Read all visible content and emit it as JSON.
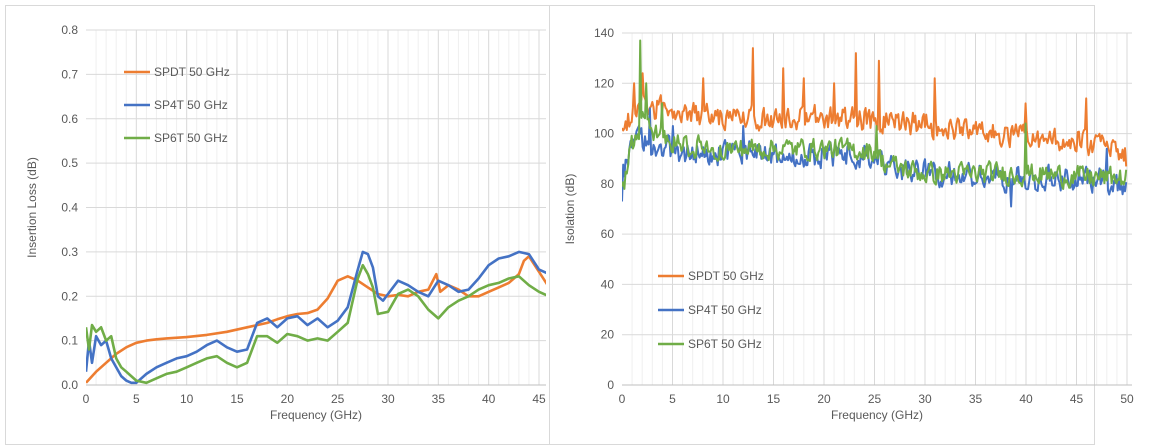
{
  "chart_data": [
    {
      "type": "line",
      "xlabel": "Frequency (GHz)",
      "ylabel": "Insertion Loss (dB)",
      "xlim": [
        0,
        45
      ],
      "ylim": [
        0,
        0.8
      ],
      "x_ticks": [
        "0",
        "5",
        "10",
        "15",
        "20",
        "25",
        "30",
        "35",
        "40",
        "45"
      ],
      "y_ticks": [
        "0.0",
        "0.1",
        "0.2",
        "0.3",
        "0.4",
        "0.5",
        "0.6",
        "0.7",
        "0.8"
      ],
      "grid": true,
      "legend_position": "top-left",
      "series": [
        {
          "name": "SPDT 50 GHz",
          "color": "#ED7D31",
          "x": [
            0,
            1,
            2,
            3,
            4,
            5,
            6,
            7,
            8,
            10,
            12,
            14,
            16,
            18,
            19,
            20,
            21,
            22,
            23,
            24,
            25,
            26,
            27,
            28,
            29,
            30,
            31,
            32,
            33,
            34,
            34.8,
            35.2,
            36,
            37,
            38,
            39,
            40,
            41,
            42,
            43,
            43.5,
            44,
            45,
            46
          ],
          "y": [
            0.005,
            0.03,
            0.05,
            0.07,
            0.085,
            0.095,
            0.1,
            0.103,
            0.105,
            0.108,
            0.113,
            0.12,
            0.13,
            0.14,
            0.148,
            0.155,
            0.16,
            0.162,
            0.17,
            0.195,
            0.235,
            0.245,
            0.235,
            0.22,
            0.205,
            0.2,
            0.203,
            0.2,
            0.21,
            0.215,
            0.25,
            0.21,
            0.225,
            0.215,
            0.2,
            0.2,
            0.21,
            0.22,
            0.23,
            0.25,
            0.28,
            0.29,
            0.255,
            0.22
          ]
        },
        {
          "name": "SP4T 50 GHz",
          "color": "#4472C4",
          "x": [
            0,
            0.3,
            0.6,
            1,
            1.5,
            2,
            2.5,
            3,
            3.5,
            4,
            4.5,
            5,
            6,
            7,
            8,
            9,
            10,
            11,
            12,
            13,
            14,
            15,
            16,
            17,
            18,
            19,
            20,
            21,
            22,
            23,
            24,
            25,
            26,
            27,
            27.5,
            28,
            28.5,
            29,
            29.5,
            30,
            31,
            32,
            33,
            34,
            35,
            36,
            37,
            38,
            39,
            40,
            41,
            42,
            43,
            44,
            45,
            46
          ],
          "y": [
            0.03,
            0.1,
            0.05,
            0.11,
            0.09,
            0.1,
            0.06,
            0.04,
            0.02,
            0.01,
            0.005,
            0.005,
            0.025,
            0.04,
            0.05,
            0.06,
            0.065,
            0.075,
            0.09,
            0.1,
            0.085,
            0.075,
            0.08,
            0.14,
            0.15,
            0.13,
            0.15,
            0.155,
            0.135,
            0.15,
            0.13,
            0.145,
            0.175,
            0.26,
            0.3,
            0.295,
            0.265,
            0.2,
            0.19,
            0.205,
            0.235,
            0.225,
            0.21,
            0.2,
            0.235,
            0.225,
            0.21,
            0.215,
            0.24,
            0.27,
            0.285,
            0.29,
            0.3,
            0.295,
            0.26,
            0.25
          ]
        },
        {
          "name": "SP6T 50 GHz",
          "color": "#70AD47",
          "x": [
            0,
            0.3,
            0.6,
            1,
            1.5,
            2,
            2.5,
            3,
            3.5,
            4,
            5,
            6,
            7,
            8,
            9,
            10,
            11,
            12,
            13,
            14,
            15,
            16,
            17,
            18,
            19,
            20,
            21,
            22,
            23,
            24,
            25,
            26,
            27,
            27.5,
            28,
            28.5,
            29,
            30,
            31,
            32,
            33,
            34,
            35,
            36,
            37,
            38,
            39,
            40,
            41,
            42,
            43,
            44,
            45,
            46
          ],
          "y": [
            0.13,
            0.08,
            0.135,
            0.12,
            0.13,
            0.1,
            0.11,
            0.06,
            0.04,
            0.03,
            0.01,
            0.005,
            0.015,
            0.025,
            0.03,
            0.04,
            0.05,
            0.06,
            0.065,
            0.05,
            0.04,
            0.05,
            0.11,
            0.11,
            0.095,
            0.115,
            0.11,
            0.1,
            0.105,
            0.1,
            0.12,
            0.14,
            0.24,
            0.27,
            0.25,
            0.22,
            0.16,
            0.165,
            0.205,
            0.215,
            0.2,
            0.17,
            0.15,
            0.175,
            0.19,
            0.2,
            0.215,
            0.225,
            0.23,
            0.24,
            0.245,
            0.225,
            0.21,
            0.2
          ]
        }
      ]
    },
    {
      "type": "line",
      "xlabel": "Frequency (GHz)",
      "ylabel": "Isolation (dB)",
      "xlim": [
        0,
        50
      ],
      "ylim": [
        0,
        140
      ],
      "x_ticks": [
        "0",
        "5",
        "10",
        "15",
        "20",
        "25",
        "30",
        "35",
        "40",
        "45",
        "50"
      ],
      "y_ticks": [
        "0",
        "20",
        "40",
        "60",
        "80",
        "100",
        "120",
        "140"
      ],
      "grid": true,
      "legend_position": "bottom-left",
      "series": [
        {
          "name": "SPDT 50 GHz",
          "color": "#ED7D31",
          "trend": {
            "x": [
              0,
              2,
              5,
              10,
              15,
              20,
              25,
              30,
              35,
              40,
              45,
              48,
              50
            ],
            "y": [
              103,
              112,
              108,
              106,
              106,
              107,
              105,
              104,
              100,
              98,
              98,
              94,
              90
            ]
          },
          "noise": 7,
          "spikes": [
            [
              1.2,
              120
            ],
            [
              2,
              124
            ],
            [
              8,
              122
            ],
            [
              13,
              134
            ],
            [
              16,
              126
            ],
            [
              18,
              122
            ],
            [
              21,
              120
            ],
            [
              23.2,
              132
            ],
            [
              25.5,
              129
            ],
            [
              31,
              122
            ],
            [
              40,
              112
            ],
            [
              46,
              114
            ]
          ]
        },
        {
          "name": "SP4T 50 GHz",
          "color": "#4472C4",
          "trend": {
            "x": [
              0,
              1.5,
              3,
              5,
              10,
              15,
              20,
              25,
              26,
              30,
              35,
              40,
              45,
              50
            ],
            "y": [
              85,
              97,
              97,
              93,
              92,
              92,
              91,
              92,
              88,
              84,
              83,
              82,
              82,
              80
            ]
          },
          "noise": 7,
          "spikes": [
            [
              0,
              73
            ],
            [
              2.8,
              110
            ],
            [
              5,
              103
            ],
            [
              12,
              103
            ],
            [
              38.5,
              71
            ],
            [
              48,
              94
            ]
          ]
        },
        {
          "name": "SP6T 50 GHz",
          "color": "#70AD47",
          "trend": {
            "x": [
              0,
              1,
              2,
              4,
              6,
              10,
              15,
              20,
              25,
              26,
              30,
              35,
              40,
              45,
              50
            ],
            "y": [
              82,
              95,
              105,
              98,
              95,
              94,
              94,
              94,
              93,
              88,
              84,
              84,
              84,
              83,
              82
            ]
          },
          "noise": 6,
          "spikes": [
            [
              0.3,
              78
            ],
            [
              1.8,
              137
            ],
            [
              2.4,
              120
            ],
            [
              4,
              112
            ],
            [
              25.2,
              103
            ],
            [
              40,
              104
            ]
          ]
        }
      ]
    }
  ]
}
